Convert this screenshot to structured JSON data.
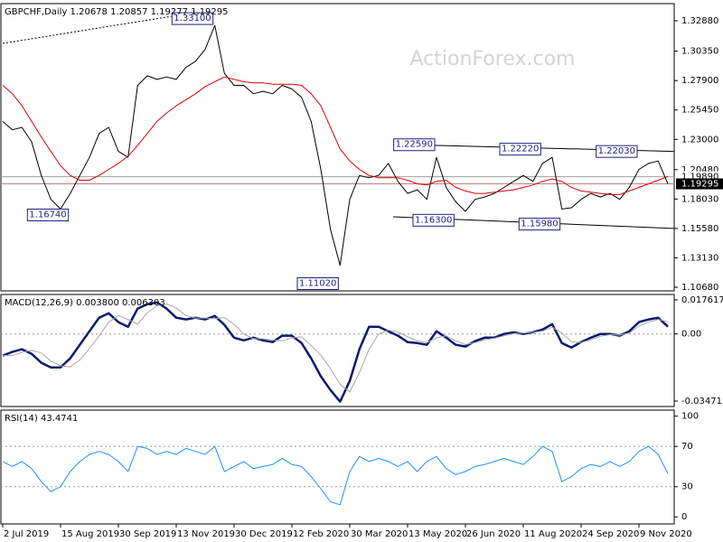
{
  "chart_data": [
    {
      "type": "line",
      "title": "GBPCHF,Daily  1.20678 1.20857 1.19277 1.19295",
      "watermark": "ActionForex.com",
      "ylim": [
        1.1038,
        1.3431
      ],
      "yticks": [
        {
          "value": 1.3288,
          "label": "1.32880"
        },
        {
          "value": 1.3035,
          "label": "1.30350"
        },
        {
          "value": 1.279,
          "label": "1.27900"
        },
        {
          "value": 1.2545,
          "label": "1.25450"
        },
        {
          "value": 1.23,
          "label": "1.23000"
        },
        {
          "value": 1.2048,
          "label": "1.20480"
        },
        {
          "value": 1.1803,
          "label": "1.18030"
        },
        {
          "value": 1.1558,
          "label": "1.15580"
        },
        {
          "value": 1.1313,
          "label": "1.13130"
        },
        {
          "value": 1.1068,
          "label": "1.10680"
        }
      ],
      "series": [
        {
          "color": "#000000",
          "width": 1,
          "values": [
            1.245,
            1.238,
            1.24,
            1.228,
            1.2,
            1.18,
            1.172,
            1.185,
            1.2,
            1.215,
            1.235,
            1.24,
            1.22,
            1.215,
            1.275,
            1.283,
            1.28,
            1.282,
            1.28,
            1.29,
            1.295,
            1.305,
            1.325,
            1.285,
            1.275,
            1.275,
            1.268,
            1.27,
            1.268,
            1.275,
            1.272,
            1.265,
            1.245,
            1.205,
            1.155,
            1.125,
            1.18,
            1.2,
            1.198,
            1.2,
            1.21,
            1.195,
            1.185,
            1.188,
            1.18,
            1.215,
            1.19,
            1.178,
            1.17,
            1.18,
            1.182,
            1.185,
            1.19,
            1.195,
            1.2,
            1.195,
            1.21,
            1.215,
            1.172,
            1.173,
            1.18,
            1.185,
            1.182,
            1.185,
            1.18,
            1.19,
            1.205,
            1.21,
            1.212,
            1.193
          ]
        },
        {
          "color": "#dd0000",
          "width": 1,
          "values": [
            1.275,
            1.268,
            1.258,
            1.245,
            1.232,
            1.22,
            1.208,
            1.2,
            1.196,
            1.196,
            1.2,
            1.205,
            1.21,
            1.216,
            1.225,
            1.235,
            1.245,
            1.252,
            1.258,
            1.263,
            1.268,
            1.274,
            1.278,
            1.282,
            1.28,
            1.278,
            1.277,
            1.277,
            1.276,
            1.276,
            1.276,
            1.275,
            1.268,
            1.258,
            1.24,
            1.222,
            1.212,
            1.205,
            1.2,
            1.198,
            1.198,
            1.198,
            1.196,
            1.193,
            1.192,
            1.195,
            1.196,
            1.19,
            1.187,
            1.185,
            1.185,
            1.186,
            1.187,
            1.188,
            1.19,
            1.192,
            1.195,
            1.197,
            1.195,
            1.19,
            1.187,
            1.186,
            1.185,
            1.184,
            1.184,
            1.187,
            1.19,
            1.193,
            1.196,
            1.199
          ]
        }
      ],
      "annotations": [
        {
          "label": "1.33100",
          "value": 1.331,
          "index": 22
        },
        {
          "label": "1.16740",
          "value": 1.1674,
          "index": 7
        },
        {
          "label": "1.11020",
          "value": 1.1102,
          "index": 35
        },
        {
          "label": "1.22590",
          "value": 1.2259,
          "index": 45
        },
        {
          "label": "1.16300",
          "value": 1.163,
          "index": 47
        },
        {
          "label": "1.22220",
          "value": 1.2222,
          "index": 56
        },
        {
          "label": "1.15980",
          "value": 1.1598,
          "index": 58
        },
        {
          "label": "1.22030",
          "value": 1.2203,
          "index": 66
        }
      ],
      "trendlines": [
        {
          "x": [
            0,
            17.5
          ],
          "y": [
            1.31,
            1.3325
          ],
          "color": "#000000",
          "dash": true
        },
        {
          "x": [
            40.5,
            69.6
          ],
          "y": [
            1.2259,
            1.22
          ],
          "color": "#000000",
          "dash": false
        },
        {
          "x": [
            40.5,
            69.6
          ],
          "y": [
            1.1655,
            1.1558
          ],
          "color": "#000000",
          "dash": false
        }
      ],
      "hlines": [
        {
          "value": 1.1989,
          "label": "1.19890",
          "color": "#a0a0a0"
        },
        {
          "value": 1.19295,
          "label": "1.19295",
          "color": "#c08080"
        }
      ]
    },
    {
      "type": "line",
      "title": "MACD(12,26,9) 0.003800 0.006303",
      "ylim": [
        -0.0375,
        0.0204
      ],
      "yticks": [
        0.017617,
        {
          "value": 0,
          "label": "0.00"
        },
        -0.034711
      ],
      "levels": [
        0
      ],
      "series": [
        {
          "color": "#0a1a6e",
          "width": 2.5,
          "values": [
            -0.0112,
            -0.0093,
            -0.0079,
            -0.0103,
            -0.0149,
            -0.0173,
            -0.0173,
            -0.0126,
            -0.0056,
            0.0014,
            0.0084,
            0.0107,
            0.0061,
            0.0037,
            0.0131,
            0.0154,
            0.0163,
            0.0131,
            0.0084,
            0.0075,
            0.0084,
            0.0075,
            0.0093,
            0.0047,
            -0.0019,
            -0.0033,
            -0.0019,
            -0.0033,
            -0.0042,
            -0.0009,
            -0.0009,
            -0.0047,
            -0.0126,
            -0.0219,
            -0.029,
            -0.035,
            -0.0243,
            -0.0079,
            0.0037,
            0.0037,
            0.0014,
            -0.0009,
            -0.0042,
            -0.0047,
            -0.0056,
            0.0014,
            -0.0019,
            -0.0056,
            -0.0065,
            -0.0037,
            -0.0019,
            -0.0019,
            0,
            0.0009,
            0,
            0.0009,
            0.0023,
            0.0051,
            -0.0047,
            -0.007,
            -0.0042,
            -0.0019,
            0,
            0,
            -0.0009,
            0.0014,
            0.0061,
            0.0075,
            0.0084,
            0.0038
          ]
        },
        {
          "color": "#a8a8a8",
          "width": 1,
          "values": [
            -0.011,
            -0.0112,
            -0.0095,
            -0.0085,
            -0.0098,
            -0.014,
            -0.0165,
            -0.017,
            -0.0135,
            -0.0075,
            -0.001,
            0.006,
            0.0095,
            0.0075,
            0.005,
            0.011,
            0.0145,
            0.0155,
            0.0135,
            0.0095,
            0.0082,
            0.0082,
            0.008,
            0.0085,
            0.005,
            0,
            -0.0025,
            -0.0025,
            -0.0032,
            -0.0035,
            -0.002,
            -0.0015,
            -0.006,
            -0.011,
            -0.018,
            -0.026,
            -0.03,
            -0.02,
            -0.008,
            0,
            0.002,
            0.001,
            -0.0015,
            -0.0035,
            -0.0045,
            -0.002,
            -0.001,
            -0.0035,
            -0.0055,
            -0.0045,
            -0.003,
            -0.0022,
            -0.001,
            0.0002,
            0.0005,
            0.0008,
            0.0015,
            0.0035,
            0.0005,
            -0.004,
            -0.0045,
            -0.003,
            -0.0012,
            -0.0004,
            -0.0006,
            0.0005,
            0.004,
            0.0062,
            0.0075,
            0.0063
          ]
        }
      ]
    },
    {
      "type": "line",
      "title": "RSI(14) 43.4741",
      "ylim": [
        -7,
        106
      ],
      "yticks": [
        100,
        70,
        30,
        0
      ],
      "levels": [
        70,
        30
      ],
      "categories": [
        "2 Jul 2019",
        null,
        null,
        null,
        null,
        null,
        "15 Aug 2019",
        null,
        null,
        null,
        null,
        null,
        "30 Sep 2019",
        null,
        null,
        null,
        null,
        null,
        "13 Nov 2019",
        null,
        null,
        null,
        null,
        null,
        "30 Dec 2019",
        null,
        null,
        null,
        null,
        null,
        "12 Feb 2020",
        null,
        null,
        null,
        null,
        null,
        "30 Mar 2020",
        null,
        null,
        null,
        null,
        null,
        "13 May 2020",
        null,
        null,
        null,
        null,
        null,
        "26 Jun 2020",
        null,
        null,
        null,
        null,
        null,
        "11 Aug 2020",
        null,
        null,
        null,
        null,
        null,
        "24 Sep 2020",
        null,
        null,
        null,
        null,
        null,
        "9 Nov 2020",
        null,
        null,
        null
      ],
      "series": [
        {
          "color": "#1e90ff",
          "width": 1,
          "values": [
            55,
            50,
            55,
            48,
            35,
            25,
            30,
            45,
            55,
            62,
            65,
            62,
            55,
            45,
            70,
            68,
            62,
            65,
            62,
            68,
            65,
            62,
            70,
            45,
            50,
            55,
            48,
            50,
            52,
            58,
            52,
            50,
            40,
            28,
            15,
            12,
            45,
            60,
            55,
            58,
            55,
            50,
            55,
            45,
            55,
            60,
            48,
            42,
            45,
            50,
            52,
            55,
            58,
            55,
            52,
            60,
            70,
            65,
            35,
            40,
            48,
            52,
            50,
            55,
            50,
            55,
            65,
            70,
            62,
            43
          ]
        }
      ]
    }
  ]
}
